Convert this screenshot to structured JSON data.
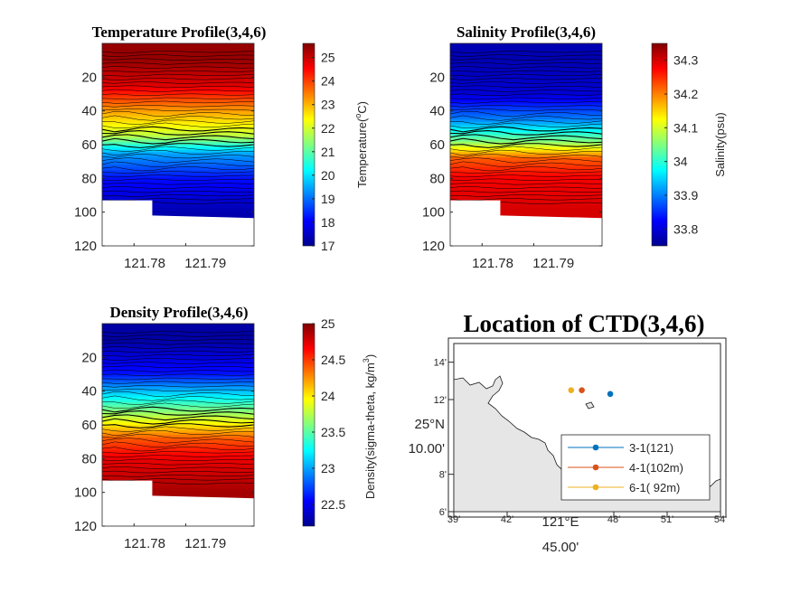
{
  "chart_data": [
    {
      "type": "heatmap",
      "title": "Temperature Profile(3,4,6)",
      "x_ticks": [
        "121.78",
        "121.79"
      ],
      "y_ticks": [
        "20",
        "40",
        "60",
        "80",
        "100",
        "120"
      ],
      "y_direction": "reversed (depth increases downward)",
      "ylim": [
        0,
        120
      ],
      "colorbar": {
        "label": "Temperature(°C)",
        "ticks": [
          "17",
          "18",
          "19",
          "20",
          "21",
          "22",
          "23",
          "24",
          "25"
        ],
        "range": [
          17,
          25.6
        ]
      },
      "layers": [
        {
          "depth": 10,
          "value": 25.4
        },
        {
          "depth": 25,
          "value": 24.8
        },
        {
          "depth": 40,
          "value": 23.2
        },
        {
          "depth": 55,
          "value": 21.8
        },
        {
          "depth": 65,
          "value": 19.5
        },
        {
          "depth": 80,
          "value": 18.2
        },
        {
          "depth": 100,
          "value": 17.4
        }
      ]
    },
    {
      "type": "heatmap",
      "title": "Salinity Profile(3,4,6)",
      "x_ticks": [
        "121.78",
        "121.79"
      ],
      "y_ticks": [
        "20",
        "40",
        "60",
        "80",
        "100",
        "120"
      ],
      "y_direction": "reversed (depth increases downward)",
      "ylim": [
        0,
        120
      ],
      "colorbar": {
        "label": "Salinity(psu)",
        "ticks": [
          "33.8",
          "33.9",
          "34",
          "34.1",
          "34.2",
          "34.3"
        ],
        "range": [
          33.75,
          34.35
        ]
      },
      "layers": [
        {
          "depth": 10,
          "value": 33.78
        },
        {
          "depth": 30,
          "value": 33.8
        },
        {
          "depth": 45,
          "value": 33.9
        },
        {
          "depth": 58,
          "value": 34.05
        },
        {
          "depth": 68,
          "value": 34.22
        },
        {
          "depth": 80,
          "value": 34.28
        },
        {
          "depth": 100,
          "value": 34.3
        }
      ]
    },
    {
      "type": "heatmap",
      "title": "Density Profile(3,4,6)",
      "x_ticks": [
        "121.78",
        "121.79"
      ],
      "y_ticks": [
        "20",
        "40",
        "60",
        "80",
        "100",
        "120"
      ],
      "y_direction": "reversed (depth increases downward)",
      "ylim": [
        0,
        120
      ],
      "colorbar": {
        "label": "Density(sigma-theta, kg/m³)",
        "ticks": [
          "22.5",
          "23",
          "23.5",
          "24",
          "24.5",
          "25"
        ],
        "range": [
          22.2,
          25
        ]
      },
      "layers": [
        {
          "depth": 10,
          "value": 22.3
        },
        {
          "depth": 30,
          "value": 22.6
        },
        {
          "depth": 45,
          "value": 23.3
        },
        {
          "depth": 58,
          "value": 23.9
        },
        {
          "depth": 68,
          "value": 24.4
        },
        {
          "depth": 80,
          "value": 24.7
        },
        {
          "depth": 100,
          "value": 24.9
        }
      ]
    },
    {
      "type": "scatter",
      "title": "Location of CTD(3,4,6)",
      "x_ticks": [
        "39'",
        "42'",
        "121°E",
        "48'",
        "51'",
        "54'"
      ],
      "x_extra_label": "45.00'",
      "y_ticks": [
        "6'",
        "8'",
        "10.00'",
        "12'",
        "14'"
      ],
      "y_extra_label": "25°N",
      "series": [
        {
          "name": "3-1(121)",
          "color": "#0072BD",
          "lon_min": 47.8,
          "lat_min": 12.3
        },
        {
          "name": "4-1(102m)",
          "color": "#D95319",
          "lon_min": 46.2,
          "lat_min": 12.5
        },
        {
          "name": "6-1( 92m)",
          "color": "#EDB120",
          "lon_min": 45.6,
          "lat_min": 12.5
        }
      ],
      "legend_position": "bottom-right"
    }
  ]
}
